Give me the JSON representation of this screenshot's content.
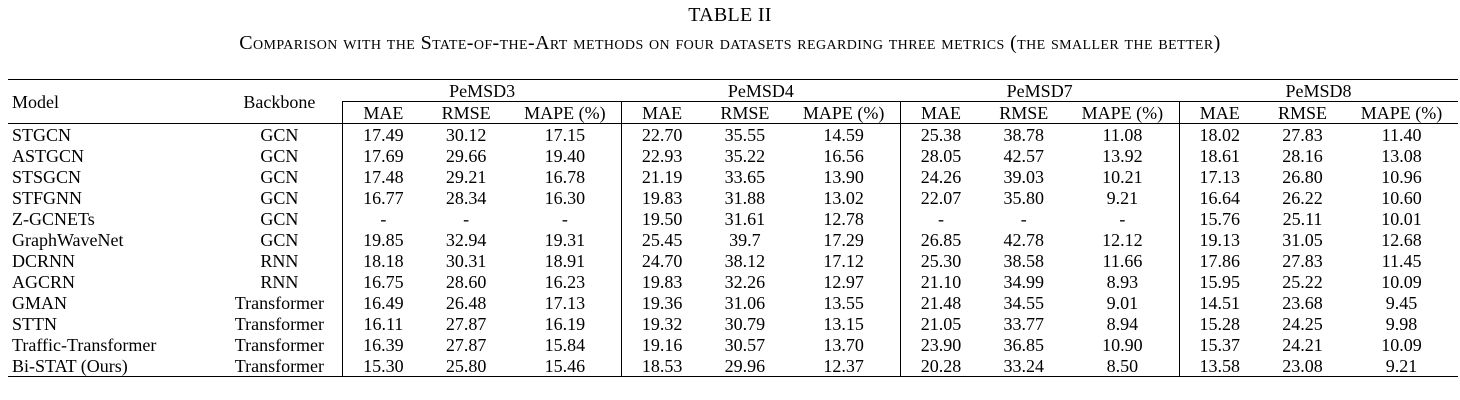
{
  "title": "TABLE II",
  "caption": "Comparison with the State-of-the-Art methods on four datasets regarding three metrics (the smaller the better)",
  "header": {
    "model": "Model",
    "backbone": "Backbone",
    "datasets": [
      "PeMSD3",
      "PeMSD4",
      "PeMSD7",
      "PeMSD8"
    ],
    "metrics": [
      "MAE",
      "RMSE",
      "MAPE (%)"
    ]
  },
  "rows": [
    {
      "model": "STGCN",
      "backbone": "GCN",
      "values": [
        "17.49",
        "30.12",
        "17.15",
        "22.70",
        "35.55",
        "14.59",
        "25.38",
        "38.78",
        "11.08",
        "18.02",
        "27.83",
        "11.40"
      ]
    },
    {
      "model": "ASTGCN",
      "backbone": "GCN",
      "values": [
        "17.69",
        "29.66",
        "19.40",
        "22.93",
        "35.22",
        "16.56",
        "28.05",
        "42.57",
        "13.92",
        "18.61",
        "28.16",
        "13.08"
      ]
    },
    {
      "model": "STSGCN",
      "backbone": "GCN",
      "values": [
        "17.48",
        "29.21",
        "16.78",
        "21.19",
        "33.65",
        "13.90",
        "24.26",
        "39.03",
        "10.21",
        "17.13",
        "26.80",
        "10.96"
      ]
    },
    {
      "model": "STFGNN",
      "backbone": "GCN",
      "values": [
        "16.77",
        "28.34",
        "16.30",
        "19.83",
        "31.88",
        "13.02",
        "22.07",
        "35.80",
        "9.21",
        "16.64",
        "26.22",
        "10.60"
      ]
    },
    {
      "model": "Z-GCNETs",
      "backbone": "GCN",
      "values": [
        "-",
        "-",
        "-",
        "19.50",
        "31.61",
        "12.78",
        "-",
        "-",
        "-",
        "15.76",
        "25.11",
        "10.01"
      ]
    },
    {
      "model": "GraphWaveNet",
      "backbone": "GCN",
      "values": [
        "19.85",
        "32.94",
        "19.31",
        "25.45",
        "39.7",
        "17.29",
        "26.85",
        "42.78",
        "12.12",
        "19.13",
        "31.05",
        "12.68"
      ]
    },
    {
      "model": "DCRNN",
      "backbone": "RNN",
      "values": [
        "18.18",
        "30.31",
        "18.91",
        "24.70",
        "38.12",
        "17.12",
        "25.30",
        "38.58",
        "11.66",
        "17.86",
        "27.83",
        "11.45"
      ]
    },
    {
      "model": "AGCRN",
      "backbone": "RNN",
      "values": [
        "16.75",
        "28.60",
        "16.23",
        "19.83",
        "32.26",
        "12.97",
        "21.10",
        "34.99",
        "8.93",
        "15.95",
        "25.22",
        "10.09"
      ]
    },
    {
      "model": "GMAN",
      "backbone": "Transformer",
      "values": [
        "16.49",
        "26.48",
        "17.13",
        "19.36",
        "31.06",
        "13.55",
        "21.48",
        "34.55",
        "9.01",
        "14.51",
        "23.68",
        "9.45"
      ]
    },
    {
      "model": "STTN",
      "backbone": "Transformer",
      "values": [
        "16.11",
        "27.87",
        "16.19",
        "19.32",
        "30.79",
        "13.15",
        "21.05",
        "33.77",
        "8.94",
        "15.28",
        "24.25",
        "9.98"
      ]
    },
    {
      "model": "Traffic-Transformer",
      "backbone": "Transformer",
      "values": [
        "16.39",
        "27.87",
        "15.84",
        "19.16",
        "30.57",
        "13.70",
        "23.90",
        "36.85",
        "10.90",
        "15.37",
        "24.21",
        "10.09"
      ]
    },
    {
      "model": "Bi-STAT (Ours)",
      "backbone": "Transformer",
      "values": [
        "15.30",
        "25.80",
        "15.46",
        "18.53",
        "29.96",
        "12.37",
        "20.28",
        "33.24",
        "8.50",
        "13.58",
        "23.08",
        "9.21"
      ],
      "bold": true
    }
  ]
}
